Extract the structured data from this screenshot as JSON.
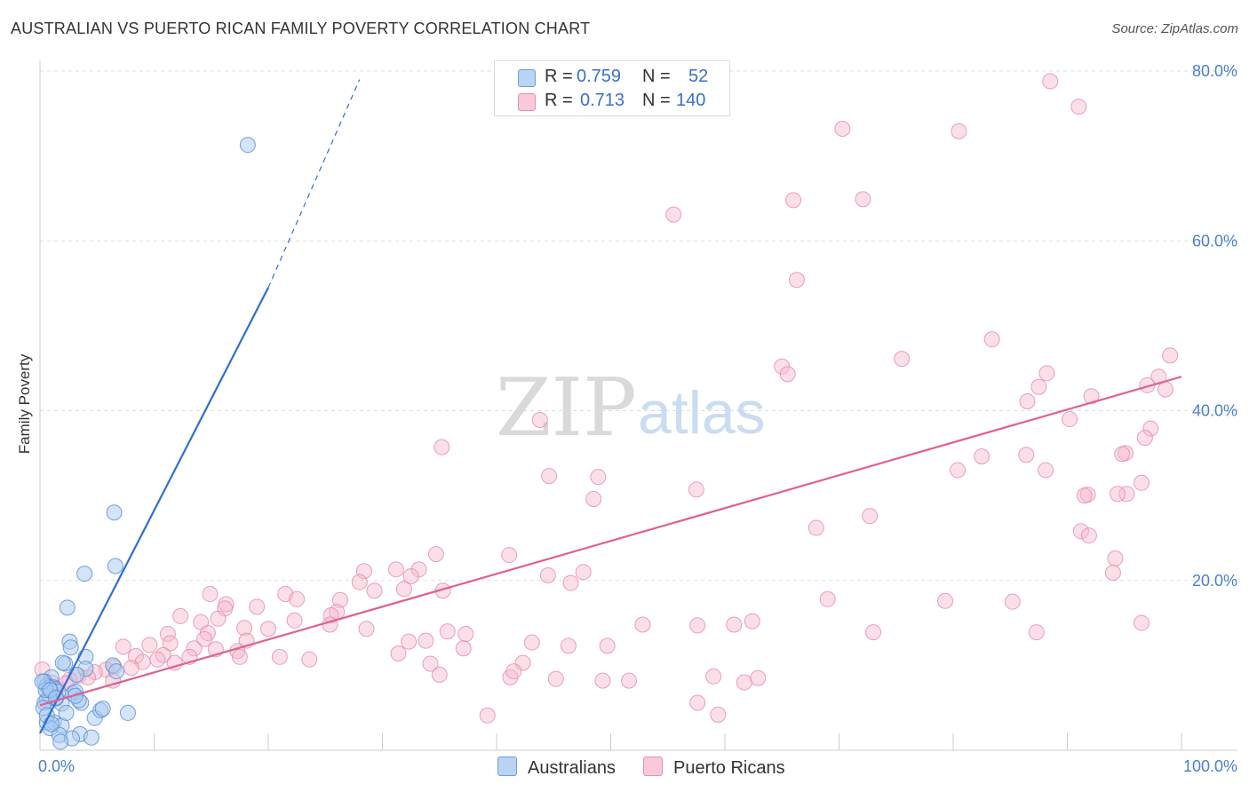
{
  "header": {
    "title": "AUSTRALIAN VS PUERTO RICAN FAMILY POVERTY CORRELATION CHART",
    "source": "Source: ZipAtlas.com"
  },
  "watermark": {
    "zip": "ZIP",
    "atlas": "atlas"
  },
  "legend": {
    "r_label": "R =",
    "n_label": "N =",
    "rows": [
      {
        "r": "0.759",
        "n": "52"
      },
      {
        "r": "0.713",
        "n": "140"
      }
    ]
  },
  "colors": {
    "blue_fill": "#a9c9f0",
    "blue_stroke": "#5a8fd6",
    "blue_line": "#2f6fd0",
    "pink_fill": "#f6b9ca",
    "pink_stroke": "#e58aa8",
    "pink_line": "#e0608c",
    "axis_text": "#4a7fd0",
    "grid": "#dddddd"
  },
  "chart_data": {
    "type": "scatter",
    "title": "AUSTRALIAN VS PUERTO RICAN FAMILY POVERTY CORRELATION CHART",
    "xlabel": "",
    "ylabel": "Family Poverty",
    "xlim": [
      0,
      100
    ],
    "ylim": [
      0,
      80
    ],
    "x_tick_labels": [
      "0.0%",
      "100.0%"
    ],
    "y_ticks": [
      20,
      40,
      60,
      80
    ],
    "y_tick_labels": [
      "20.0%",
      "40.0%",
      "60.0%",
      "80.0%"
    ],
    "grid": true,
    "legend_position": "top-center",
    "series": [
      {
        "name": "Australians",
        "r": 0.759,
        "n": 52,
        "trend": {
          "x": [
            0,
            20
          ],
          "y": [
            2.0,
            54.5
          ],
          "dashed_to": [
            28,
            79
          ]
        },
        "points": [
          [
            18.2,
            71.3
          ],
          [
            6.5,
            28.0
          ],
          [
            6.6,
            21.7
          ],
          [
            3.9,
            20.8
          ],
          [
            2.4,
            16.8
          ],
          [
            2.6,
            12.8
          ],
          [
            2.7,
            12.1
          ],
          [
            4.0,
            11.0
          ],
          [
            4.0,
            9.6
          ],
          [
            6.4,
            10.0
          ],
          [
            6.7,
            9.3
          ],
          [
            2.2,
            10.2
          ],
          [
            2.0,
            10.3
          ],
          [
            3.2,
            8.9
          ],
          [
            1.0,
            8.6
          ],
          [
            0.4,
            8.1
          ],
          [
            0.6,
            7.6
          ],
          [
            1.2,
            7.4
          ],
          [
            1.3,
            7.2
          ],
          [
            1.6,
            6.9
          ],
          [
            2.9,
            6.7
          ],
          [
            3.1,
            6.9
          ],
          [
            3.6,
            5.6
          ],
          [
            0.6,
            5.9
          ],
          [
            1.9,
            5.5
          ],
          [
            3.4,
            5.9
          ],
          [
            1.4,
            6.1
          ],
          [
            0.8,
            6.4
          ],
          [
            0.4,
            5.6
          ],
          [
            0.3,
            5.0
          ],
          [
            0.6,
            3.3
          ],
          [
            1.2,
            3.3
          ],
          [
            1.9,
            2.9
          ],
          [
            0.9,
            2.6
          ],
          [
            1.7,
            1.8
          ],
          [
            3.5,
            1.9
          ],
          [
            4.5,
            1.5
          ],
          [
            2.8,
            1.4
          ],
          [
            1.8,
            1.0
          ],
          [
            4.8,
            3.8
          ],
          [
            5.3,
            4.7
          ],
          [
            5.5,
            4.9
          ],
          [
            7.7,
            4.4
          ],
          [
            3.1,
            6.4
          ],
          [
            0.8,
            7.4
          ],
          [
            0.5,
            7.1
          ],
          [
            0.2,
            8.1
          ],
          [
            0.9,
            7.1
          ],
          [
            1.4,
            6.2
          ],
          [
            0.6,
            4.1
          ],
          [
            2.3,
            4.4
          ],
          [
            1.0,
            3.1
          ]
        ]
      },
      {
        "name": "Puerto Ricans",
        "r": 0.713,
        "n": 140,
        "trend": {
          "x": [
            0,
            100
          ],
          "y": [
            5.3,
            44.0
          ]
        },
        "points": [
          [
            88.5,
            78.8
          ],
          [
            91.0,
            75.8
          ],
          [
            70.3,
            73.2
          ],
          [
            80.5,
            72.9
          ],
          [
            66.0,
            64.8
          ],
          [
            72.1,
            64.9
          ],
          [
            55.5,
            63.1
          ],
          [
            66.3,
            55.4
          ],
          [
            83.4,
            48.4
          ],
          [
            75.5,
            46.1
          ],
          [
            65.0,
            45.2
          ],
          [
            65.5,
            44.3
          ],
          [
            88.2,
            44.4
          ],
          [
            87.5,
            42.8
          ],
          [
            99.0,
            46.5
          ],
          [
            98.0,
            44.0
          ],
          [
            97.0,
            43.0
          ],
          [
            98.6,
            42.5
          ],
          [
            92.1,
            41.7
          ],
          [
            86.5,
            41.1
          ],
          [
            90.2,
            39.0
          ],
          [
            97.3,
            37.9
          ],
          [
            96.8,
            36.8
          ],
          [
            43.8,
            38.9
          ],
          [
            35.2,
            35.7
          ],
          [
            80.4,
            33.0
          ],
          [
            86.4,
            34.8
          ],
          [
            82.5,
            34.6
          ],
          [
            95.1,
            35.0
          ],
          [
            94.8,
            34.9
          ],
          [
            88.1,
            33.0
          ],
          [
            96.5,
            31.5
          ],
          [
            48.9,
            32.2
          ],
          [
            44.6,
            32.3
          ],
          [
            57.5,
            30.7
          ],
          [
            95.2,
            30.2
          ],
          [
            94.4,
            30.2
          ],
          [
            91.8,
            30.1
          ],
          [
            48.5,
            29.6
          ],
          [
            91.5,
            30.0
          ],
          [
            72.7,
            27.6
          ],
          [
            68.0,
            26.2
          ],
          [
            91.2,
            25.8
          ],
          [
            91.9,
            25.3
          ],
          [
            94.2,
            22.6
          ],
          [
            94.0,
            20.9
          ],
          [
            41.1,
            23.0
          ],
          [
            34.7,
            23.1
          ],
          [
            33.2,
            21.3
          ],
          [
            28.4,
            21.1
          ],
          [
            31.2,
            21.3
          ],
          [
            32.5,
            20.5
          ],
          [
            44.5,
            20.6
          ],
          [
            47.6,
            21.0
          ],
          [
            46.5,
            19.7
          ],
          [
            28.0,
            19.8
          ],
          [
            31.9,
            19.0
          ],
          [
            29.3,
            18.8
          ],
          [
            35.3,
            18.8
          ],
          [
            21.5,
            18.4
          ],
          [
            22.5,
            17.8
          ],
          [
            26.3,
            17.7
          ],
          [
            14.9,
            18.4
          ],
          [
            19.0,
            16.9
          ],
          [
            16.3,
            17.2
          ],
          [
            16.2,
            16.7
          ],
          [
            26.0,
            16.3
          ],
          [
            25.5,
            15.9
          ],
          [
            69.0,
            17.8
          ],
          [
            79.3,
            17.6
          ],
          [
            85.2,
            17.5
          ],
          [
            62.4,
            15.2
          ],
          [
            96.5,
            15.0
          ],
          [
            87.3,
            13.9
          ],
          [
            73.0,
            13.9
          ],
          [
            52.8,
            14.8
          ],
          [
            57.6,
            14.7
          ],
          [
            60.8,
            14.8
          ],
          [
            35.7,
            14.0
          ],
          [
            33.8,
            12.9
          ],
          [
            37.3,
            13.7
          ],
          [
            28.6,
            14.3
          ],
          [
            32.3,
            12.8
          ],
          [
            31.4,
            11.4
          ],
          [
            14.1,
            15.1
          ],
          [
            15.6,
            15.5
          ],
          [
            17.9,
            14.4
          ],
          [
            20.0,
            14.3
          ],
          [
            22.3,
            15.3
          ],
          [
            25.4,
            14.8
          ],
          [
            12.3,
            15.8
          ],
          [
            14.7,
            13.8
          ],
          [
            18.1,
            12.9
          ],
          [
            17.3,
            11.7
          ],
          [
            14.4,
            13.1
          ],
          [
            11.2,
            13.7
          ],
          [
            11.4,
            12.6
          ],
          [
            15.4,
            11.9
          ],
          [
            13.5,
            12.0
          ],
          [
            17.5,
            11.0
          ],
          [
            9.6,
            12.4
          ],
          [
            10.8,
            11.2
          ],
          [
            13.1,
            11.0
          ],
          [
            7.3,
            12.2
          ],
          [
            8.4,
            11.1
          ],
          [
            9.0,
            10.4
          ],
          [
            11.8,
            10.3
          ],
          [
            10.3,
            10.7
          ],
          [
            8.0,
            9.7
          ],
          [
            6.5,
            9.8
          ],
          [
            5.8,
            9.5
          ],
          [
            4.8,
            9.2
          ],
          [
            3.4,
            8.8
          ],
          [
            4.2,
            8.6
          ],
          [
            6.4,
            8.2
          ],
          [
            2.6,
            8.3
          ],
          [
            1.5,
            7.3
          ],
          [
            2.3,
            7.9
          ],
          [
            0.2,
            9.5
          ],
          [
            1.0,
            8.0
          ],
          [
            21.0,
            11.0
          ],
          [
            23.6,
            10.7
          ],
          [
            34.2,
            10.2
          ],
          [
            42.3,
            10.3
          ],
          [
            45.2,
            8.4
          ],
          [
            46.3,
            12.3
          ],
          [
            49.3,
            8.2
          ],
          [
            51.6,
            8.2
          ],
          [
            41.2,
            8.6
          ],
          [
            49.7,
            12.3
          ],
          [
            43.1,
            12.7
          ],
          [
            59.0,
            8.7
          ],
          [
            61.7,
            8.0
          ],
          [
            62.9,
            8.5
          ],
          [
            37.1,
            12.0
          ],
          [
            41.5,
            9.3
          ],
          [
            57.6,
            5.6
          ],
          [
            35.0,
            8.9
          ],
          [
            39.2,
            4.1
          ],
          [
            59.4,
            4.2
          ]
        ]
      }
    ]
  },
  "bottom_legend": [
    "Australians",
    "Puerto Ricans"
  ]
}
